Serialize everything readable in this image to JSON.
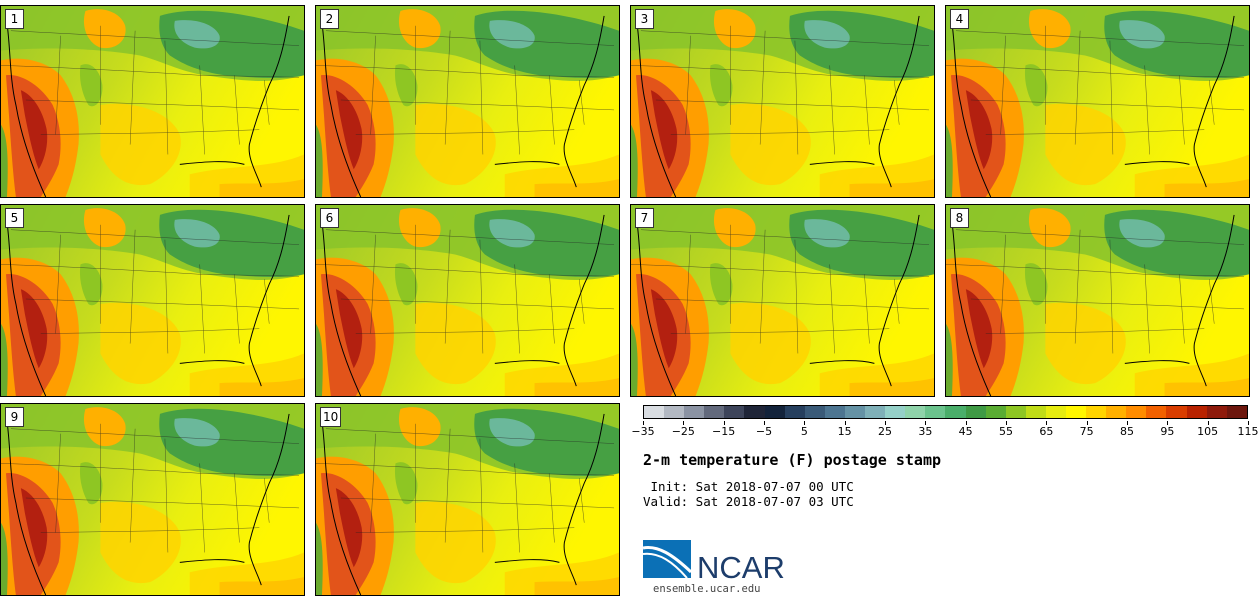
{
  "panels": [
    {
      "label": "1"
    },
    {
      "label": "2"
    },
    {
      "label": "3"
    },
    {
      "label": "4"
    },
    {
      "label": "5"
    },
    {
      "label": "6"
    },
    {
      "label": "7"
    },
    {
      "label": "8"
    },
    {
      "label": "9"
    },
    {
      "label": "10"
    }
  ],
  "colorbar": {
    "colors": [
      "#d9dde2",
      "#b3b9c3",
      "#8b93a3",
      "#62697c",
      "#3d445a",
      "#1f2538",
      "#13233b",
      "#263f5e",
      "#3a5a78",
      "#4d7591",
      "#6592a5",
      "#7fb0b8",
      "#95d0c8",
      "#8fd3aa",
      "#6bc38d",
      "#4aae6a",
      "#3f9a45",
      "#5aac33",
      "#8ec623",
      "#c0dc17",
      "#e6ec10",
      "#fff600",
      "#ffd400",
      "#ffb000",
      "#ff8c00",
      "#f26100",
      "#d93d00",
      "#b82200",
      "#8e1a0b",
      "#6c160d"
    ],
    "tick_labels": [
      "−35",
      "−25",
      "−15",
      "−5",
      "5",
      "15",
      "25",
      "35",
      "45",
      "55",
      "65",
      "75",
      "85",
      "95",
      "105",
      "115"
    ]
  },
  "title": "2-m temperature (F) postage stamp",
  "init_line": " Init: Sat 2018-07-07 00 UTC",
  "valid_line": "Valid: Sat 2018-07-07 03 UTC",
  "logo_text": "NCAR",
  "url": "ensemble.ucar.edu"
}
